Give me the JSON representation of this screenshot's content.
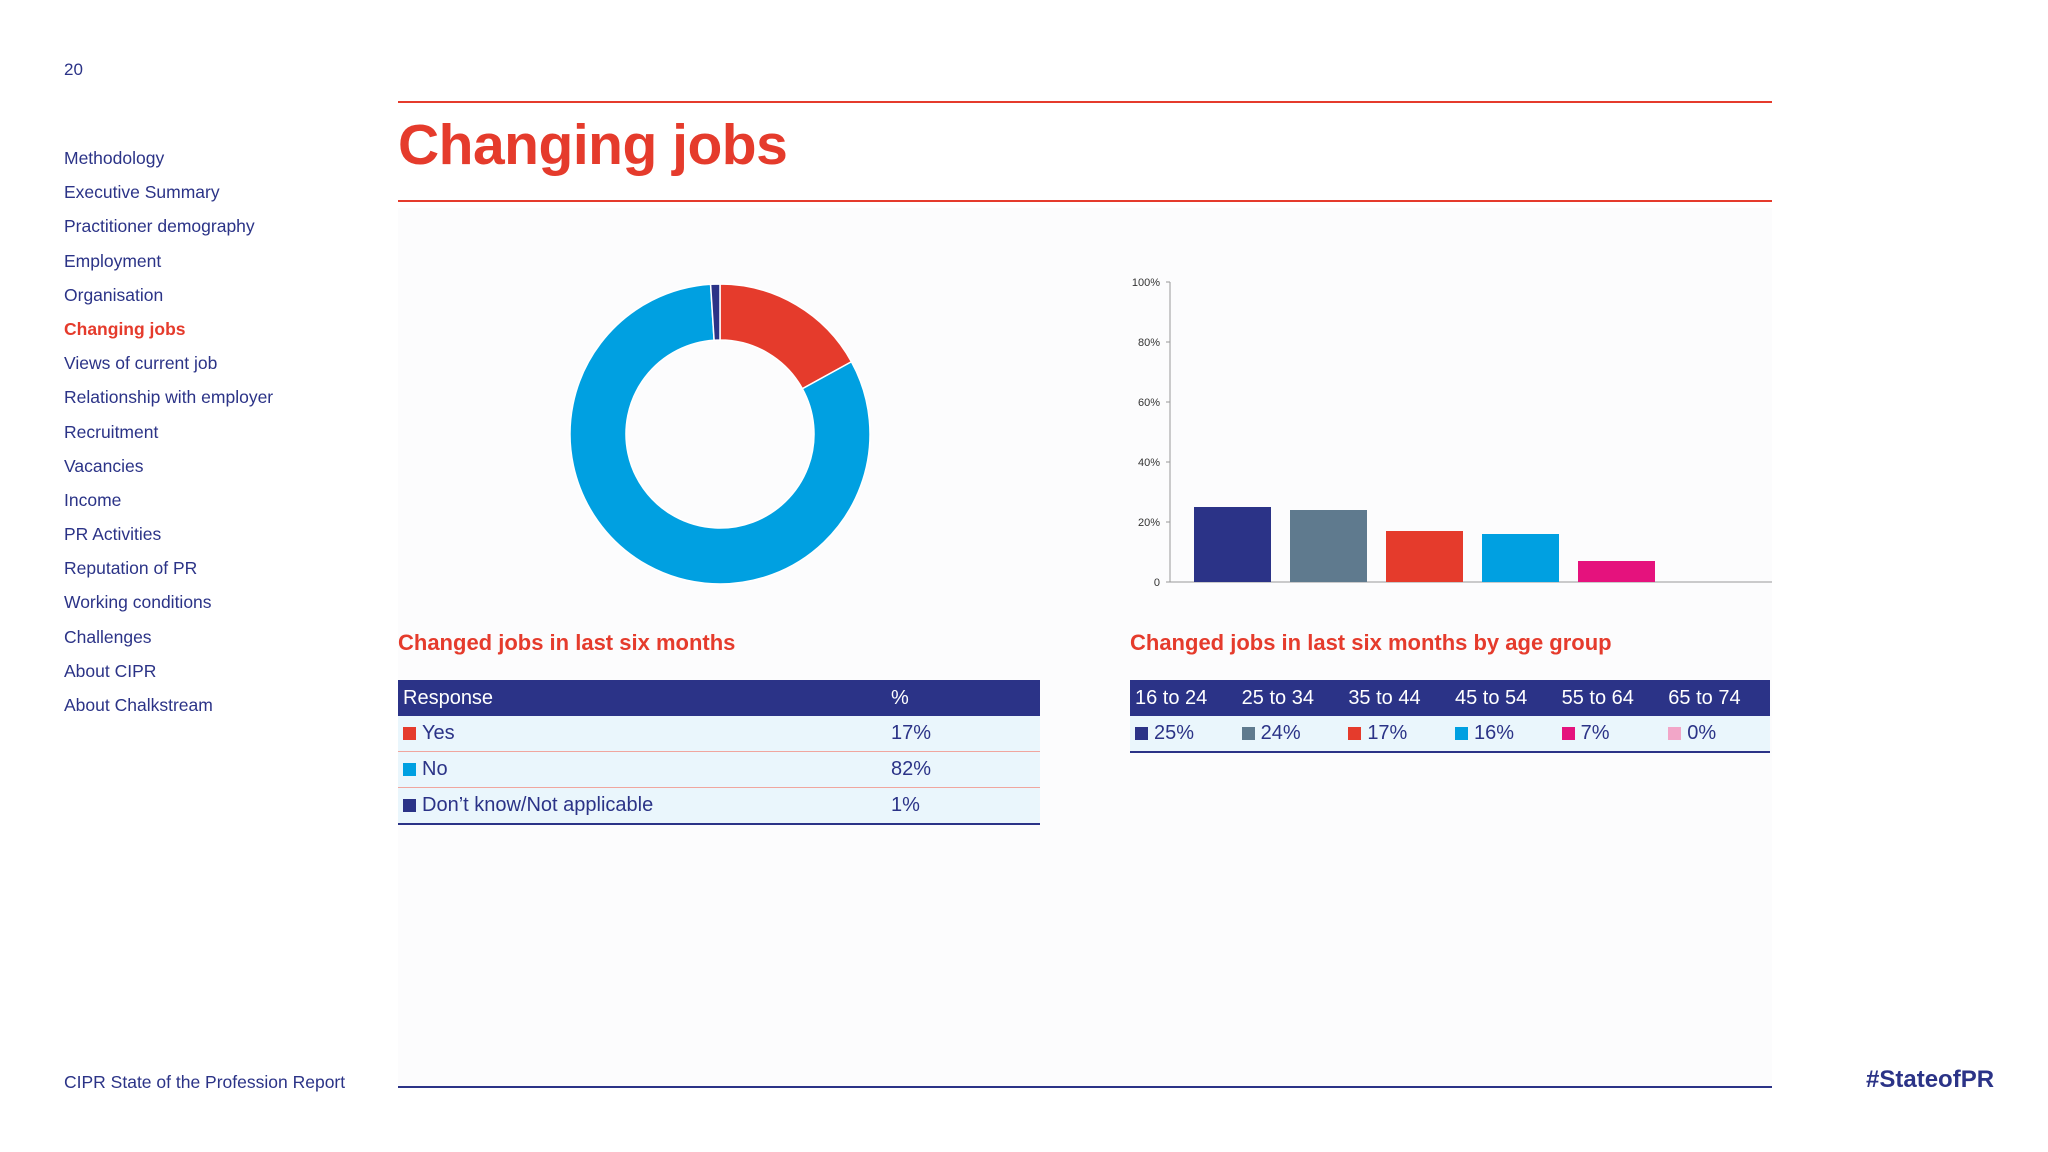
{
  "page_number": "20",
  "sidebar": {
    "items": [
      {
        "label": "Methodology",
        "active": false
      },
      {
        "label": "Executive Summary",
        "active": false
      },
      {
        "label": "Practitioner demography",
        "active": false
      },
      {
        "label": "Employment",
        "active": false
      },
      {
        "label": "Organisation",
        "active": false
      },
      {
        "label": "Changing jobs",
        "active": true
      },
      {
        "label": "Views of current job",
        "active": false
      },
      {
        "label": "Relationship with employer",
        "active": false
      },
      {
        "label": "Recruitment",
        "active": false
      },
      {
        "label": "Vacancies",
        "active": false
      },
      {
        "label": "Income",
        "active": false
      },
      {
        "label": "PR Activities",
        "active": false
      },
      {
        "label": "Reputation of PR",
        "active": false
      },
      {
        "label": "Working conditions",
        "active": false
      },
      {
        "label": "Challenges",
        "active": false
      },
      {
        "label": "About CIPR",
        "active": false
      },
      {
        "label": "About Chalkstream",
        "active": false
      }
    ]
  },
  "title": "Changing jobs",
  "colors": {
    "accent_red": "#e53b2c",
    "navy": "#2b3387",
    "slate": "#5f7a8e",
    "cyan": "#00a0e1",
    "magenta": "#e5127d",
    "pink": "#f2a6c8"
  },
  "response_section": {
    "heading": "Changed jobs in last six months",
    "table": {
      "headers": [
        "Response",
        "%"
      ],
      "rows": [
        {
          "label": "Yes",
          "value": "17%",
          "color": "#e53b2c"
        },
        {
          "label": "No",
          "value": "82%",
          "color": "#00a0e1"
        },
        {
          "label": "Don’t know/Not applicable",
          "value": "1%",
          "color": "#2b3387"
        }
      ]
    }
  },
  "age_section": {
    "heading": "Changed jobs in last six months by age group",
    "table": {
      "headers": [
        "16 to 24",
        "25 to 34",
        "35 to 44",
        "45 to 54",
        "55 to 64",
        "65 to 74"
      ],
      "values": [
        "25%",
        "24%",
        "17%",
        "16%",
        "7%",
        "0%"
      ]
    }
  },
  "chart_data": [
    {
      "type": "pie",
      "donut": true,
      "categories": [
        "Yes",
        "No",
        "Don’t know/Not applicable"
      ],
      "values": [
        17,
        82,
        1
      ],
      "colors": [
        "#e53b2c",
        "#00a0e1",
        "#2b3387"
      ]
    },
    {
      "type": "bar",
      "categories": [
        "16 to 24",
        "25 to 34",
        "35 to 44",
        "45 to 54",
        "55 to 64",
        "65 to 74"
      ],
      "values": [
        25,
        24,
        17,
        16,
        7,
        0
      ],
      "colors": [
        "#2b3387",
        "#5f7a8e",
        "#e53b2c",
        "#00a0e1",
        "#e5127d",
        "#f2a6c8"
      ],
      "ylim": [
        0,
        100
      ],
      "yticks": [
        {
          "value": 0,
          "label": "0"
        },
        {
          "value": 20,
          "label": "20%"
        },
        {
          "value": 40,
          "label": "40%"
        },
        {
          "value": 60,
          "label": "60%"
        },
        {
          "value": 80,
          "label": "80%"
        },
        {
          "value": 100,
          "label": "100%"
        }
      ],
      "grid": false
    }
  ],
  "footer": {
    "left": "CIPR State of the Profession Report",
    "right": "#StateofPR"
  }
}
